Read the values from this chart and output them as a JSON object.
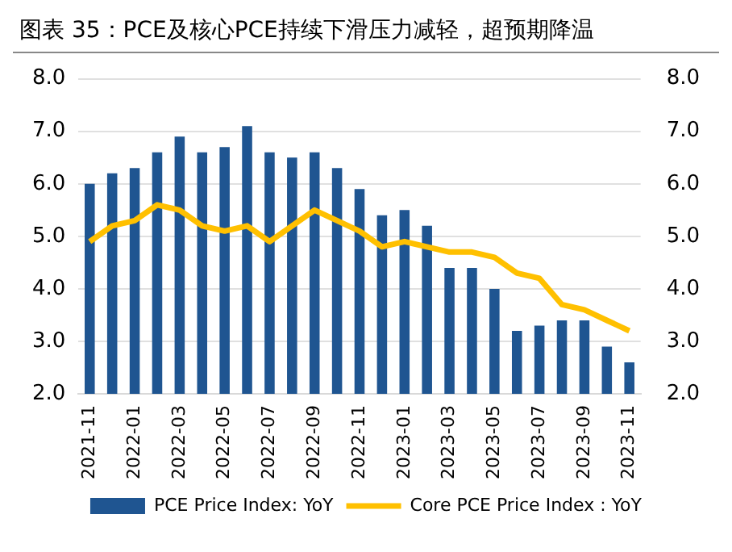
{
  "chart_data": {
    "type": "bar",
    "title": "图表 35：PCE及核心PCE持续下滑压力减轻，超预期降温",
    "categories": [
      "2021-11",
      null,
      "2022-01",
      null,
      "2022-03",
      null,
      "2022-05",
      null,
      "2022-07",
      null,
      "2022-09",
      null,
      "2022-11",
      null,
      "2023-01",
      null,
      "2023-03",
      null,
      "2023-05",
      null,
      "2023-07",
      null,
      "2023-09",
      null,
      "2023-11"
    ],
    "series": [
      {
        "name": "PCE Price Index: YoY",
        "color": "#1f5591",
        "values": [
          6.0,
          6.2,
          6.3,
          6.6,
          6.9,
          6.6,
          6.7,
          7.1,
          6.6,
          6.5,
          6.6,
          6.3,
          5.9,
          5.4,
          5.5,
          5.2,
          4.4,
          4.4,
          4.0,
          3.2,
          3.3,
          3.4,
          3.4,
          2.9,
          2.6
        ]
      },
      {
        "name": "Core PCE Price Index : YoY",
        "type": "line",
        "axis": "y2",
        "color": "#ffc000",
        "values": [
          4.9,
          5.2,
          5.3,
          5.6,
          5.5,
          5.2,
          5.1,
          5.2,
          4.9,
          5.2,
          5.5,
          5.3,
          5.1,
          4.8,
          4.9,
          4.8,
          4.7,
          4.7,
          4.6,
          4.3,
          4.2,
          3.7,
          3.6,
          3.4,
          3.2
        ]
      }
    ],
    "ylim": [
      2.0,
      8.0
    ],
    "yticks": [
      {
        "value": 2,
        "label": "2.0"
      },
      {
        "value": 3,
        "label": "3.0"
      },
      {
        "value": 4,
        "label": "4.0"
      },
      {
        "value": 5,
        "label": "5.0"
      },
      {
        "value": 6,
        "label": "6.0"
      },
      {
        "value": 7,
        "label": "7.0"
      },
      {
        "value": 8,
        "label": "8.0"
      }
    ],
    "y2lim": [
      2.0,
      8.0
    ],
    "y2ticks": [
      {
        "value": 2,
        "label": "2.0"
      },
      {
        "value": 3,
        "label": "3.0"
      },
      {
        "value": 4,
        "label": "4.0"
      },
      {
        "value": 5,
        "label": "5.0"
      },
      {
        "value": 6,
        "label": "6.0"
      },
      {
        "value": 7,
        "label": "7.0"
      },
      {
        "value": 8,
        "label": "8.0"
      }
    ],
    "grid": "y",
    "legend": "bottom",
    "marker": "none"
  }
}
